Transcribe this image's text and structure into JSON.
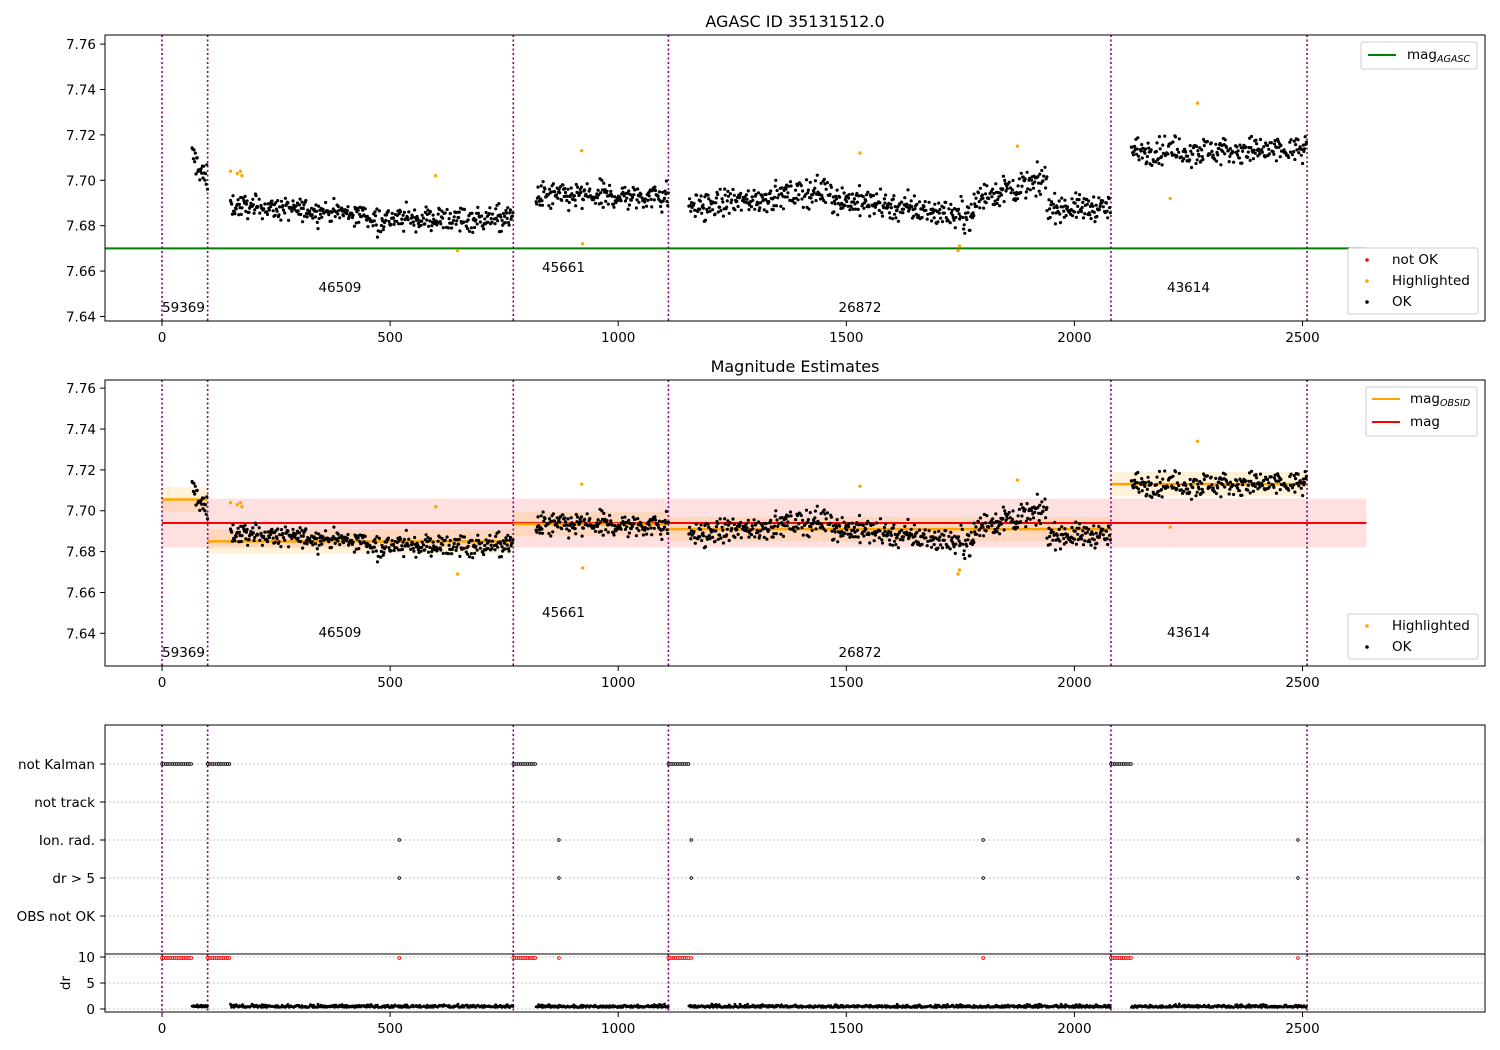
{
  "colors": {
    "ok": "#000000",
    "not_ok": "#ff0000",
    "highlighted": "#ffa500",
    "mag_agasc": "#008000",
    "mag_obsid": "#ffa500",
    "mag": "#ff0000",
    "boundary": "#800080",
    "grid": "#b0b0b0"
  },
  "chart_data": [
    {
      "type": "scatter",
      "title": "AGASC ID 35131512.0",
      "xlim": [
        -125,
        2900
      ],
      "ylim": [
        7.638,
        7.764
      ],
      "xticks": [
        0,
        500,
        1000,
        1500,
        2000,
        2500
      ],
      "yticks": [
        7.64,
        7.66,
        7.68,
        7.7,
        7.72,
        7.74,
        7.76
      ],
      "mag_agasc": 7.67,
      "legend_upper": [
        "mag_AGASC"
      ],
      "legend_lower": [
        "not OK",
        "Highlighted",
        "OK"
      ],
      "legend_position": "upper right / lower right"
    },
    {
      "type": "scatter",
      "title": "Magnitude Estimates",
      "xlim": [
        -125,
        2900
      ],
      "ylim": [
        7.624,
        7.764
      ],
      "xticks": [
        0,
        500,
        1000,
        1500,
        2000,
        2500
      ],
      "yticks": [
        7.64,
        7.66,
        7.68,
        7.7,
        7.72,
        7.74,
        7.76
      ],
      "mag": 7.694,
      "mag_band": [
        7.682,
        7.706
      ],
      "legend_upper": [
        "mag_OBSID",
        "mag"
      ],
      "legend_lower": [
        "Highlighted",
        "OK"
      ],
      "legend_position": "upper right / lower right"
    },
    {
      "type": "scatter",
      "title": "",
      "flags": [
        "not Kalman",
        "not track",
        "Ion. rad.",
        "dr > 5",
        "OBS not OK"
      ],
      "dr_yticks": [
        0,
        5,
        10
      ],
      "dr_ylabel": "dr",
      "xticks": [
        0,
        500,
        1000,
        1500,
        2000,
        2500
      ],
      "ion_rad_points": [
        520,
        870,
        1160,
        1800,
        2490
      ],
      "dr_gt5_points": [
        520,
        870,
        1160,
        1800,
        2490
      ]
    }
  ],
  "segments": [
    {
      "obsid": "59369",
      "start": 0,
      "end": 100,
      "mag_obsid": 7.7055,
      "label_x": 0,
      "label_row": 2,
      "kalman_end": 65
    },
    {
      "obsid": "46509",
      "start": 100,
      "end": 770,
      "mag_obsid": 7.685,
      "label_x": 390,
      "label_row": 1,
      "kalman_end": 150
    },
    {
      "obsid": "45661",
      "start": 770,
      "end": 1110,
      "mag_obsid": 7.6935,
      "label_x": 880,
      "label_row": 0,
      "kalman_end": 820
    },
    {
      "obsid": "26872",
      "start": 1110,
      "end": 2080,
      "mag_obsid": 7.691,
      "label_x": 1530,
      "label_row": 2,
      "kalman_end": 1155
    },
    {
      "obsid": "43614",
      "start": 2080,
      "end": 2510,
      "mag_obsid": 7.713,
      "label_x": 2250,
      "label_row": 1,
      "kalman_end": 2125
    }
  ]
}
